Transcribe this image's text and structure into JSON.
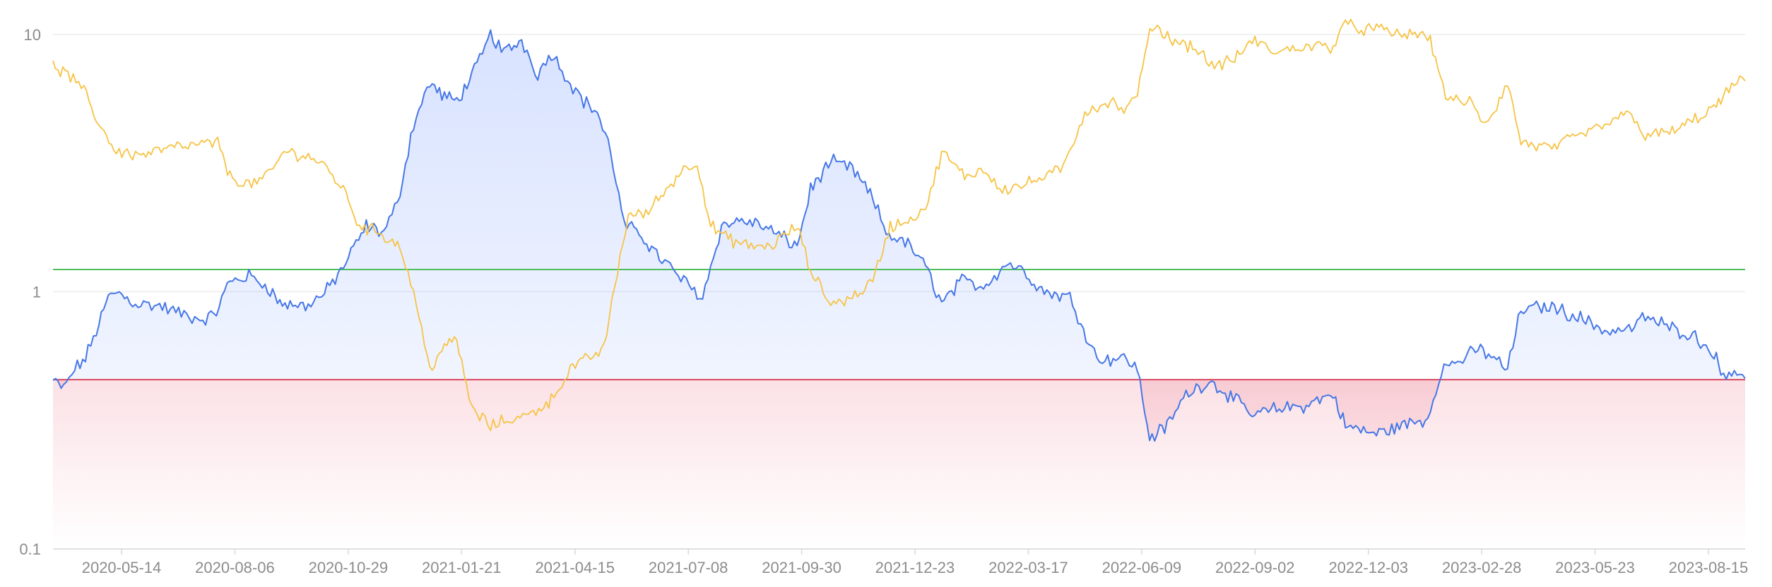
{
  "chart_data": {
    "type": "line",
    "title": "",
    "xlabel": "",
    "ylabel": "",
    "y_scale": "log",
    "ylim": [
      0.1,
      12
    ],
    "xlim": [
      "2020-03-28",
      "2023-09-02"
    ],
    "grid": true,
    "legend": "none",
    "y_ticks": [
      "0.1",
      "1",
      "10"
    ],
    "y_tick_values": [
      0.1,
      1,
      10
    ],
    "x_tick_labels": [
      "2020-05-14",
      "2020-08-06",
      "2020-10-29",
      "2021-01-21",
      "2021-04-15",
      "2021-07-08",
      "2021-09-30",
      "2021-12-23",
      "2022-03-17",
      "2022-06-09",
      "2022-09-02",
      "2022-12-03",
      "2023-02-28",
      "2023-05-23",
      "2023-08-15"
    ],
    "reference_lines": [
      {
        "value": 1.22,
        "color": "#4cbf5c"
      },
      {
        "value": 0.455,
        "color": "#d94a62"
      }
    ],
    "fill": {
      "baseline": 0.455,
      "above_color": "#4d7cfe",
      "below_color": "#f08fa0"
    },
    "series": [
      {
        "color": "#4677e6",
        "points": [
          [
            "2020-03-28",
            0.45
          ],
          [
            "2020-04-05",
            0.42
          ],
          [
            "2020-04-13",
            0.5
          ],
          [
            "2020-04-21",
            0.55
          ],
          [
            "2020-05-01",
            0.75
          ],
          [
            "2020-05-08",
            0.95
          ],
          [
            "2020-05-14",
            1.0
          ],
          [
            "2020-05-28",
            0.9
          ],
          [
            "2020-06-15",
            0.88
          ],
          [
            "2020-07-01",
            0.82
          ],
          [
            "2020-07-15",
            0.78
          ],
          [
            "2020-07-25",
            0.8
          ],
          [
            "2020-08-06",
            1.1
          ],
          [
            "2020-08-20",
            1.15
          ],
          [
            "2020-09-03",
            1.05
          ],
          [
            "2020-09-12",
            0.9
          ],
          [
            "2020-10-01",
            0.88
          ],
          [
            "2020-10-15",
            0.98
          ],
          [
            "2020-10-29",
            1.25
          ],
          [
            "2020-11-15",
            1.8
          ],
          [
            "2020-11-28",
            1.7
          ],
          [
            "2020-12-08",
            2.2
          ],
          [
            "2020-12-20",
            4.5
          ],
          [
            "2021-01-01",
            6.5
          ],
          [
            "2021-01-10",
            5.8
          ],
          [
            "2021-01-21",
            5.5
          ],
          [
            "2021-02-05",
            7.5
          ],
          [
            "2021-02-15",
            10.0
          ],
          [
            "2021-02-25",
            8.5
          ],
          [
            "2021-03-10",
            9.5
          ],
          [
            "2021-03-22",
            7.0
          ],
          [
            "2021-04-01",
            8.5
          ],
          [
            "2021-04-15",
            6.5
          ],
          [
            "2021-04-25",
            5.5
          ],
          [
            "2021-05-05",
            5.0
          ],
          [
            "2021-05-15",
            3.5
          ],
          [
            "2021-05-25",
            1.8
          ],
          [
            "2021-06-05",
            1.7
          ],
          [
            "2021-06-18",
            1.4
          ],
          [
            "2021-07-08",
            1.1
          ],
          [
            "2021-07-22",
            0.95
          ],
          [
            "2021-08-05",
            1.8
          ],
          [
            "2021-08-20",
            1.9
          ],
          [
            "2021-09-05",
            1.8
          ],
          [
            "2021-09-30",
            1.5
          ],
          [
            "2021-10-10",
            2.5
          ],
          [
            "2021-10-25",
            3.2
          ],
          [
            "2021-11-10",
            3.0
          ],
          [
            "2021-11-25",
            2.3
          ],
          [
            "2021-12-05",
            1.7
          ],
          [
            "2021-12-23",
            1.5
          ],
          [
            "2022-01-05",
            1.2
          ],
          [
            "2022-01-15",
            0.9
          ],
          [
            "2022-01-30",
            1.1
          ],
          [
            "2022-02-15",
            1.05
          ],
          [
            "2022-03-05",
            1.3
          ],
          [
            "2022-03-17",
            1.2
          ],
          [
            "2022-04-01",
            1.0
          ],
          [
            "2022-04-20",
            0.95
          ],
          [
            "2022-05-10",
            0.55
          ],
          [
            "2022-06-01",
            0.55
          ],
          [
            "2022-06-09",
            0.5
          ],
          [
            "2022-06-18",
            0.27
          ],
          [
            "2022-07-01",
            0.3
          ],
          [
            "2022-07-15",
            0.4
          ],
          [
            "2022-08-01",
            0.45
          ],
          [
            "2022-08-15",
            0.4
          ],
          [
            "2022-09-02",
            0.33
          ],
          [
            "2022-09-20",
            0.35
          ],
          [
            "2022-10-10",
            0.36
          ],
          [
            "2022-11-01",
            0.4
          ],
          [
            "2022-11-10",
            0.3
          ],
          [
            "2022-12-03",
            0.28
          ],
          [
            "2022-12-20",
            0.3
          ],
          [
            "2023-01-10",
            0.32
          ],
          [
            "2023-01-20",
            0.5
          ],
          [
            "2023-02-05",
            0.55
          ],
          [
            "2023-02-18",
            0.6
          ],
          [
            "2023-02-28",
            0.55
          ],
          [
            "2023-03-10",
            0.5
          ],
          [
            "2023-03-20",
            0.85
          ],
          [
            "2023-04-10",
            0.88
          ],
          [
            "2023-05-01",
            0.8
          ],
          [
            "2023-05-23",
            0.7
          ],
          [
            "2023-06-10",
            0.72
          ],
          [
            "2023-06-20",
            0.8
          ],
          [
            "2023-07-10",
            0.72
          ],
          [
            "2023-07-25",
            0.68
          ],
          [
            "2023-08-10",
            0.58
          ],
          [
            "2023-08-15",
            0.48
          ],
          [
            "2023-08-25",
            0.5
          ],
          [
            "2023-09-02",
            0.46
          ]
        ]
      },
      {
        "color": "#f6c344",
        "points": [
          [
            "2020-03-28",
            7.5
          ],
          [
            "2020-04-08",
            7.0
          ],
          [
            "2020-04-20",
            6.0
          ],
          [
            "2020-05-01",
            4.5
          ],
          [
            "2020-05-14",
            3.5
          ],
          [
            "2020-06-01",
            3.4
          ],
          [
            "2020-06-20",
            3.6
          ],
          [
            "2020-07-10",
            3.7
          ],
          [
            "2020-07-28",
            3.8
          ],
          [
            "2020-08-06",
            2.8
          ],
          [
            "2020-08-20",
            2.6
          ],
          [
            "2020-09-03",
            2.8
          ],
          [
            "2020-09-15",
            3.5
          ],
          [
            "2020-10-01",
            3.4
          ],
          [
            "2020-10-15",
            3.1
          ],
          [
            "2020-10-29",
            2.5
          ],
          [
            "2020-11-10",
            1.8
          ],
          [
            "2020-11-25",
            1.7
          ],
          [
            "2020-12-10",
            1.5
          ],
          [
            "2020-12-20",
            1.0
          ],
          [
            "2021-01-01",
            0.5
          ],
          [
            "2021-01-10",
            0.6
          ],
          [
            "2021-01-21",
            0.65
          ],
          [
            "2021-02-01",
            0.35
          ],
          [
            "2021-02-15",
            0.3
          ],
          [
            "2021-03-01",
            0.32
          ],
          [
            "2021-03-15",
            0.33
          ],
          [
            "2021-04-01",
            0.38
          ],
          [
            "2021-04-15",
            0.5
          ],
          [
            "2021-04-28",
            0.55
          ],
          [
            "2021-05-10",
            0.6
          ],
          [
            "2021-05-20",
            1.2
          ],
          [
            "2021-05-28",
            2.0
          ],
          [
            "2021-06-10",
            2.0
          ],
          [
            "2021-06-25",
            2.5
          ],
          [
            "2021-07-08",
            3.0
          ],
          [
            "2021-07-18",
            3.2
          ],
          [
            "2021-07-28",
            1.8
          ],
          [
            "2021-08-10",
            1.6
          ],
          [
            "2021-08-25",
            1.5
          ],
          [
            "2021-09-10",
            1.5
          ],
          [
            "2021-09-30",
            1.8
          ],
          [
            "2021-10-10",
            1.2
          ],
          [
            "2021-10-25",
            0.9
          ],
          [
            "2021-11-10",
            0.95
          ],
          [
            "2021-11-25",
            1.1
          ],
          [
            "2021-12-08",
            1.8
          ],
          [
            "2021-12-23",
            1.9
          ],
          [
            "2022-01-05",
            2.2
          ],
          [
            "2022-01-15",
            3.5
          ],
          [
            "2022-02-01",
            2.8
          ],
          [
            "2022-02-15",
            3.0
          ],
          [
            "2022-03-01",
            2.5
          ],
          [
            "2022-03-17",
            2.6
          ],
          [
            "2022-04-01",
            2.8
          ],
          [
            "2022-04-15",
            3.0
          ],
          [
            "2022-05-01",
            5.0
          ],
          [
            "2022-05-20",
            5.5
          ],
          [
            "2022-06-01",
            5.0
          ],
          [
            "2022-06-09",
            6.0
          ],
          [
            "2022-06-20",
            11.0
          ],
          [
            "2022-07-05",
            9.5
          ],
          [
            "2022-07-20",
            9.0
          ],
          [
            "2022-08-05",
            7.5
          ],
          [
            "2022-08-20",
            8.0
          ],
          [
            "2022-09-02",
            9.5
          ],
          [
            "2022-09-20",
            8.5
          ],
          [
            "2022-10-10",
            9.0
          ],
          [
            "2022-11-01",
            9.0
          ],
          [
            "2022-11-08",
            11.0
          ],
          [
            "2022-11-20",
            10.5
          ],
          [
            "2022-12-03",
            10.5
          ],
          [
            "2022-12-20",
            10.0
          ],
          [
            "2023-01-10",
            10.0
          ],
          [
            "2023-01-25",
            5.5
          ],
          [
            "2023-02-10",
            5.5
          ],
          [
            "2023-02-20",
            4.5
          ],
          [
            "2023-02-28",
            5.0
          ],
          [
            "2023-03-10",
            6.5
          ],
          [
            "2023-03-20",
            3.8
          ],
          [
            "2023-04-10",
            3.6
          ],
          [
            "2023-05-01",
            4.0
          ],
          [
            "2023-05-23",
            4.5
          ],
          [
            "2023-06-10",
            5.0
          ],
          [
            "2023-06-20",
            4.0
          ],
          [
            "2023-07-10",
            4.2
          ],
          [
            "2023-07-25",
            4.6
          ],
          [
            "2023-08-10",
            5.2
          ],
          [
            "2023-08-15",
            5.5
          ],
          [
            "2023-08-25",
            6.5
          ],
          [
            "2023-09-02",
            6.6
          ]
        ]
      }
    ]
  }
}
